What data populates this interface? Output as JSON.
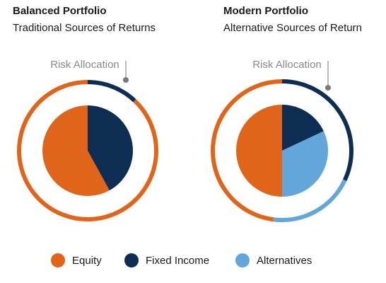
{
  "colors": {
    "equity": "#E0641A",
    "fixed_income": "#0D2D52",
    "alternatives": "#62A6DA",
    "annotation": "#8A8A8A"
  },
  "chart_data": [
    {
      "type": "pie",
      "title": "Balanced Portfolio",
      "subtitle": "Traditional Sources of Returns",
      "annotation": "Risk Allocation",
      "inner": {
        "categories": [
          "Fixed Income",
          "Equity"
        ],
        "values": [
          42,
          58
        ]
      },
      "outer_ring": {
        "label": "Risk Allocation",
        "categories": [
          "Fixed Income",
          "Equity"
        ],
        "values": [
          12,
          88
        ]
      }
    },
    {
      "type": "pie",
      "title": "Modern Portfolio",
      "subtitle": "Alternative Sources of Return",
      "annotation": "Risk Allocation",
      "inner": {
        "categories": [
          "Fixed Income",
          "Alternatives",
          "Equity"
        ],
        "values": [
          18,
          32,
          50
        ]
      },
      "outer_ring": {
        "label": "Risk Allocation",
        "categories": [
          "Fixed Income",
          "Alternatives",
          "Equity"
        ],
        "values": [
          32,
          20,
          48
        ]
      }
    }
  ],
  "legend": [
    {
      "label": "Equity",
      "color": "#E0641A"
    },
    {
      "label": "Fixed Income",
      "color": "#0D2D52"
    },
    {
      "label": "Alternatives",
      "color": "#62A6DA"
    }
  ]
}
